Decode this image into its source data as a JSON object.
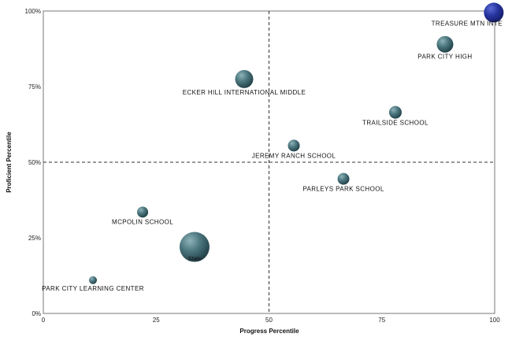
{
  "chart_data": {
    "type": "scatter",
    "title": "",
    "xlabel": "Progress Percentile",
    "ylabel": "Proficient Percentile",
    "xlim": [
      0,
      100
    ],
    "ylim": [
      0,
      100
    ],
    "x_ticks": [
      "0",
      "25",
      "50",
      "75",
      "100"
    ],
    "y_ticks": [
      "0%",
      "25%",
      "50%",
      "75%",
      "100%"
    ],
    "reference_lines": {
      "x": 50,
      "y": 50,
      "style": "dashed"
    },
    "grid": false,
    "points": [
      {
        "label": "TREASURE MTN INTE",
        "x": 99.8,
        "y": 99.5,
        "size": 1.25,
        "color": "#1f2f9a"
      },
      {
        "label": "PARK CITY HIGH",
        "x": 89,
        "y": 89,
        "size": 1.05,
        "color": "#3a6670"
      },
      {
        "label": "ECKER HILL INTERNATIONAL MIDDLE",
        "x": 44.5,
        "y": 77.5,
        "size": 1.15,
        "color": "#3a6670"
      },
      {
        "label": "TRAILSIDE SCHOOL",
        "x": 78,
        "y": 66.5,
        "size": 0.8,
        "color": "#3a6670"
      },
      {
        "label": "JEREMY RANCH SCHOOL",
        "x": 55.5,
        "y": 55.5,
        "size": 0.75,
        "color": "#3a6670"
      },
      {
        "label": "PARLEYS PARK SCHOOL",
        "x": 66.5,
        "y": 44.5,
        "size": 0.75,
        "color": "#3a6670"
      },
      {
        "label": "MCPOLIN SCHOOL",
        "x": 22,
        "y": 33.5,
        "size": 0.7,
        "color": "#3a6670"
      },
      {
        "label": "State",
        "x": 33.5,
        "y": 22,
        "size": 1.9,
        "color": "#3a6670"
      },
      {
        "label": "PARK CITY LEARNING CENTER",
        "x": 11,
        "y": 11,
        "size": 0.5,
        "color": "#3a6670"
      }
    ]
  }
}
